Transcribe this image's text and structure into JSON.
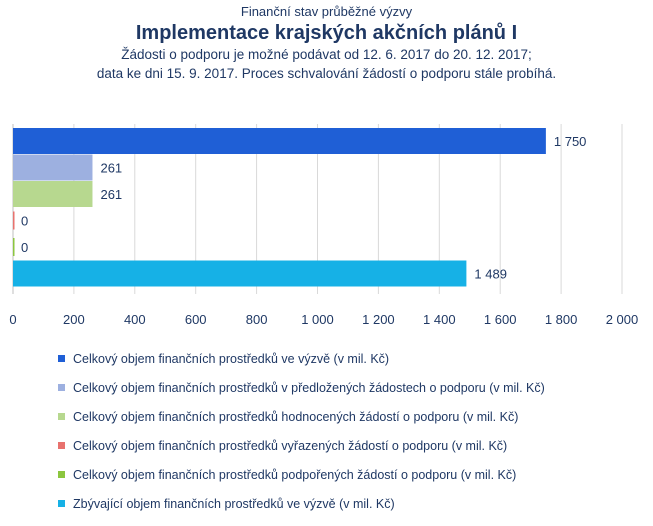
{
  "header": {
    "supertitle": "Finanční stav průběžné výzvy",
    "title": "Implementace krajských akčních plánů I",
    "subtitle_line1": "Žádosti o podporu je možné podávat od 12. 6. 2017 do 20. 12. 2017;",
    "subtitle_line2": "data ke dni 15. 9. 2017. Proces schvalování žádostí o podporu stále probíhá."
  },
  "chart_data": {
    "type": "bar",
    "orientation": "horizontal",
    "title": "Implementace krajských akčních plánů I",
    "xlim": [
      0,
      2000
    ],
    "x_ticks": [
      0,
      200,
      400,
      600,
      800,
      1000,
      1200,
      1400,
      1600,
      1800,
      2000
    ],
    "x_tick_labels": [
      "0",
      "200",
      "400",
      "600",
      "800",
      "1 000",
      "1 200",
      "1 400",
      "1 600",
      "1 800",
      "2 000"
    ],
    "grid": true,
    "legend_position": "bottom",
    "series": [
      {
        "name": "Celkový objem finančních prostředků ve výzvě (v mil. Kč)",
        "value": 1750,
        "label": "1 750",
        "color": "#1f5fd6",
        "icon": "square-icon"
      },
      {
        "name": "Celkový objem finančních prostředků v předložených žádostech o podporu (v mil. Kč)",
        "value": 261,
        "label": "261",
        "color": "#9db0e0",
        "icon": "square-icon"
      },
      {
        "name": "Celkový objem finančních prostředků hodnocených žádostí o podporu (v mil. Kč)",
        "value": 261,
        "label": "261",
        "color": "#b7d88f",
        "icon": "square-icon"
      },
      {
        "name": "Celkový objem finančních prostředků vyřazených žádostí o podporu (v mil. Kč)",
        "value": 0,
        "label": "0",
        "color": "#e8726e",
        "icon": "square-icon"
      },
      {
        "name": "Celkový objem finančních prostředků podpořených žádostí o podporu (v mil. Kč)",
        "value": 0,
        "label": "0",
        "color": "#8cc63f",
        "icon": "square-icon"
      },
      {
        "name": "Zbývající objem finančních prostředků ve výzvě (v mil. Kč)",
        "value": 1489,
        "label": "1 489",
        "color": "#16b1e6",
        "icon": "square-icon"
      }
    ]
  }
}
